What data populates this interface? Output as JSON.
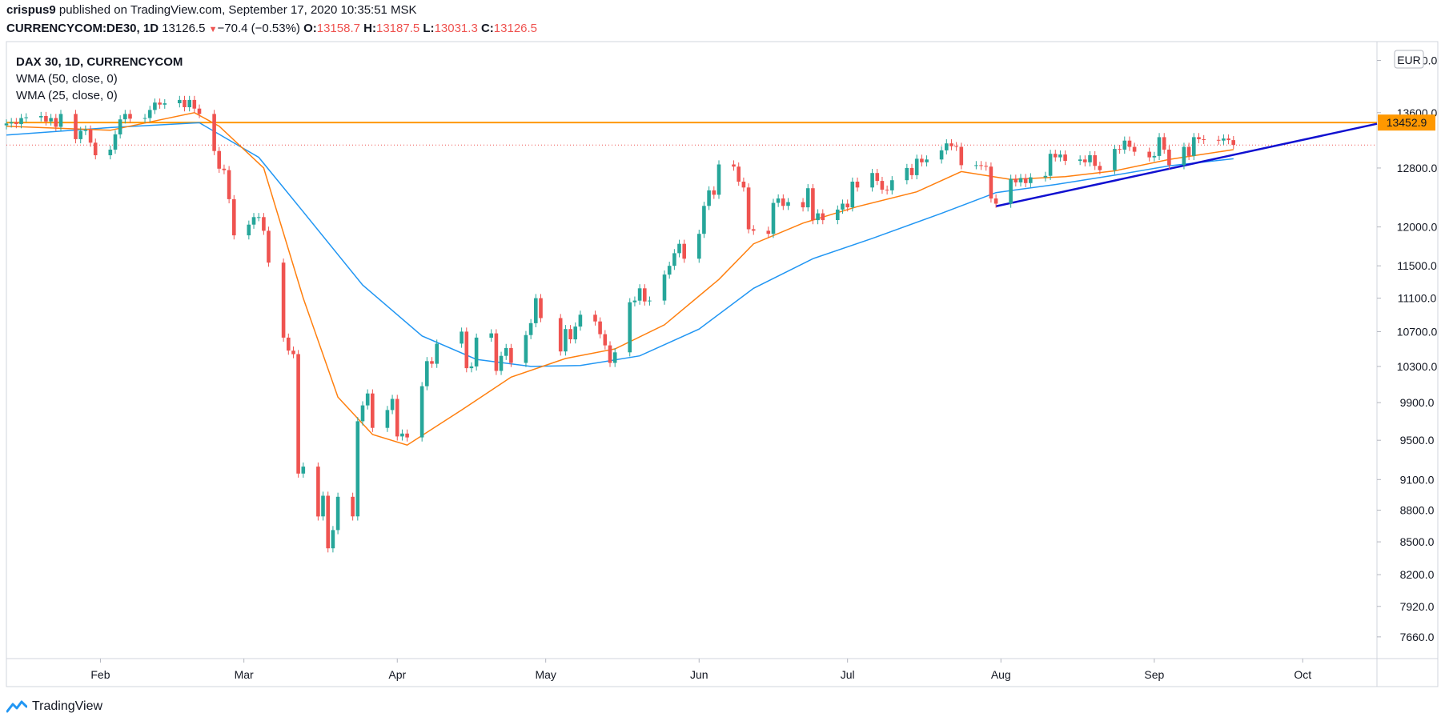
{
  "header": {
    "user": "crispus9",
    "published_text": "published on TradingView.com, September 17, 2020 10:35:51 MSK",
    "symbol": "CURRENCYCOM:DE30, 1D",
    "last": "13126.5",
    "change": "−70.4 (−0.53%)",
    "o_label": "O:",
    "o": "13158.7",
    "h_label": "H:",
    "h": "13187.5",
    "l_label": "L:",
    "l": "13031.3",
    "c_label": "C:",
    "c": "13126.5"
  },
  "legend": {
    "title": "DAX 30, 1D, CURRENCYCOM",
    "wma50": "WMA (50, close, 0)",
    "wma25": "WMA (25, close, 0)"
  },
  "footer": {
    "brand": "TradingView"
  },
  "colors": {
    "up": "#26a69a",
    "down": "#ef5350",
    "wma25": "#ff7f0e",
    "wma50": "#2196f3",
    "resistance": "#ff9800",
    "trendline": "#1010d0",
    "lastprice": "#ef5350"
  },
  "chart_data": {
    "type": "candlestick",
    "currency": "EUR",
    "y_scale": "log",
    "ylim": [
      7480,
      14700
    ],
    "ytick_labels": [
      "14400.0",
      "13600.0",
      "12800.0",
      "12000.0",
      "11500.0",
      "11100.0",
      "10700.0",
      "10300.0",
      "9900.0",
      "9500.0",
      "9100.0",
      "8800.0",
      "8500.0",
      "8200.0",
      "7920.0",
      "7660.0"
    ],
    "x_month_labels": [
      {
        "date": "2020-02-01",
        "label": "Feb"
      },
      {
        "date": "2020-03-01",
        "label": "Mar"
      },
      {
        "date": "2020-04-01",
        "label": "Apr"
      },
      {
        "date": "2020-05-01",
        "label": "May"
      },
      {
        "date": "2020-06-01",
        "label": "Jun"
      },
      {
        "date": "2020-07-01",
        "label": "Jul"
      },
      {
        "date": "2020-08-01",
        "label": "Aug"
      },
      {
        "date": "2020-09-01",
        "label": "Sep"
      },
      {
        "date": "2020-10-01",
        "label": "Oct"
      }
    ],
    "x_range": [
      "2020-01-13",
      "2020-10-16"
    ],
    "series_close": {
      "name": "DAX 30",
      "points": [
        [
          "2020-01-13",
          13440
        ],
        [
          "2020-01-14",
          13460
        ],
        [
          "2020-01-15",
          13430
        ],
        [
          "2020-01-16",
          13520
        ],
        [
          "2020-01-17",
          13530
        ],
        [
          "2020-01-20",
          13550
        ],
        [
          "2020-01-21",
          13470
        ],
        [
          "2020-01-22",
          13520
        ],
        [
          "2020-01-23",
          13390
        ],
        [
          "2020-01-24",
          13580
        ],
        [
          "2020-01-27",
          13210
        ],
        [
          "2020-01-28",
          13330
        ],
        [
          "2020-01-29",
          13350
        ],
        [
          "2020-01-30",
          13160
        ],
        [
          "2020-01-31",
          12980
        ],
        [
          "2020-02-03",
          13060
        ],
        [
          "2020-02-04",
          13280
        ],
        [
          "2020-02-05",
          13500
        ],
        [
          "2020-02-06",
          13580
        ],
        [
          "2020-02-07",
          13510
        ],
        [
          "2020-02-10",
          13520
        ],
        [
          "2020-02-11",
          13640
        ],
        [
          "2020-02-12",
          13750
        ],
        [
          "2020-02-13",
          13720
        ],
        [
          "2020-02-14",
          13740
        ],
        [
          "2020-02-17",
          13790
        ],
        [
          "2020-02-18",
          13680
        ],
        [
          "2020-02-19",
          13790
        ],
        [
          "2020-02-20",
          13660
        ],
        [
          "2020-02-21",
          13580
        ],
        [
          "2020-02-24",
          13040
        ],
        [
          "2020-02-25",
          12790
        ],
        [
          "2020-02-26",
          12770
        ],
        [
          "2020-02-27",
          12370
        ],
        [
          "2020-02-28",
          11890
        ],
        [
          "2020-03-02",
          12030
        ],
        [
          "2020-03-03",
          12130
        ],
        [
          "2020-03-04",
          12130
        ],
        [
          "2020-03-05",
          11950
        ],
        [
          "2020-03-06",
          11540
        ],
        [
          "2020-03-09",
          10630
        ],
        [
          "2020-03-10",
          10480
        ],
        [
          "2020-03-11",
          10440
        ],
        [
          "2020-03-12",
          9160
        ],
        [
          "2020-03-13",
          9230
        ],
        [
          "2020-03-16",
          8740
        ],
        [
          "2020-03-17",
          8940
        ],
        [
          "2020-03-18",
          8440
        ],
        [
          "2020-03-19",
          8610
        ],
        [
          "2020-03-20",
          8930
        ],
        [
          "2020-03-23",
          8740
        ],
        [
          "2020-03-24",
          9700
        ],
        [
          "2020-03-25",
          9870
        ],
        [
          "2020-03-26",
          10000
        ],
        [
          "2020-03-27",
          9630
        ],
        [
          "2020-03-30",
          9820
        ],
        [
          "2020-03-31",
          9940
        ],
        [
          "2020-04-01",
          9540
        ],
        [
          "2020-04-02",
          9570
        ],
        [
          "2020-04-03",
          9530
        ],
        [
          "2020-04-06",
          10080
        ],
        [
          "2020-04-07",
          10360
        ],
        [
          "2020-04-08",
          10330
        ],
        [
          "2020-04-09",
          10560
        ],
        [
          "2020-04-14",
          10700
        ],
        [
          "2020-04-15",
          10280
        ],
        [
          "2020-04-16",
          10300
        ],
        [
          "2020-04-17",
          10630
        ],
        [
          "2020-04-20",
          10680
        ],
        [
          "2020-04-21",
          10250
        ],
        [
          "2020-04-22",
          10420
        ],
        [
          "2020-04-23",
          10510
        ],
        [
          "2020-04-24",
          10340
        ],
        [
          "2020-04-27",
          10660
        ],
        [
          "2020-04-28",
          10800
        ],
        [
          "2020-04-29",
          11100
        ],
        [
          "2020-04-30",
          10860
        ],
        [
          "2020-05-04",
          10470
        ],
        [
          "2020-05-05",
          10730
        ],
        [
          "2020-05-06",
          10610
        ],
        [
          "2020-05-07",
          10760
        ],
        [
          "2020-05-08",
          10900
        ],
        [
          "2020-05-11",
          10820
        ],
        [
          "2020-05-12",
          10670
        ],
        [
          "2020-05-13",
          10540
        ],
        [
          "2020-05-14",
          10340
        ],
        [
          "2020-05-15",
          10460
        ],
        [
          "2020-05-18",
          11050
        ],
        [
          "2020-05-19",
          11070
        ],
        [
          "2020-05-20",
          11220
        ],
        [
          "2020-05-21",
          11060
        ],
        [
          "2020-05-22",
          11070
        ],
        [
          "2020-05-25",
          11390
        ],
        [
          "2020-05-26",
          11500
        ],
        [
          "2020-05-27",
          11660
        ],
        [
          "2020-05-28",
          11780
        ],
        [
          "2020-05-29",
          11590
        ],
        [
          "2020-06-01",
          11910
        ],
        [
          "2020-06-02",
          12280
        ],
        [
          "2020-06-03",
          12490
        ],
        [
          "2020-06-04",
          12430
        ],
        [
          "2020-06-05",
          12850
        ],
        [
          "2020-06-08",
          12820
        ],
        [
          "2020-06-09",
          12610
        ],
        [
          "2020-06-10",
          12530
        ],
        [
          "2020-06-11",
          11970
        ],
        [
          "2020-06-12",
          11950
        ],
        [
          "2020-06-15",
          11910
        ],
        [
          "2020-06-16",
          12320
        ],
        [
          "2020-06-17",
          12380
        ],
        [
          "2020-06-18",
          12280
        ],
        [
          "2020-06-19",
          12330
        ],
        [
          "2020-06-22",
          12260
        ],
        [
          "2020-06-23",
          12520
        ],
        [
          "2020-06-24",
          12090
        ],
        [
          "2020-06-25",
          12180
        ],
        [
          "2020-06-26",
          12090
        ],
        [
          "2020-06-29",
          12230
        ],
        [
          "2020-06-30",
          12310
        ],
        [
          "2020-07-01",
          12260
        ],
        [
          "2020-07-02",
          12610
        ],
        [
          "2020-07-03",
          12530
        ],
        [
          "2020-07-06",
          12730
        ],
        [
          "2020-07-07",
          12620
        ],
        [
          "2020-07-08",
          12500
        ],
        [
          "2020-07-09",
          12490
        ],
        [
          "2020-07-10",
          12630
        ],
        [
          "2020-07-13",
          12800
        ],
        [
          "2020-07-14",
          12700
        ],
        [
          "2020-07-15",
          12930
        ],
        [
          "2020-07-16",
          12880
        ],
        [
          "2020-07-17",
          12920
        ],
        [
          "2020-07-20",
          13050
        ],
        [
          "2020-07-21",
          13150
        ],
        [
          "2020-07-22",
          13110
        ],
        [
          "2020-07-23",
          13100
        ],
        [
          "2020-07-24",
          12840
        ],
        [
          "2020-07-27",
          12840
        ],
        [
          "2020-07-28",
          12830
        ],
        [
          "2020-07-29",
          12820
        ],
        [
          "2020-07-30",
          12380
        ],
        [
          "2020-07-31",
          12310
        ],
        [
          "2020-08-03",
          12650
        ],
        [
          "2020-08-04",
          12600
        ],
        [
          "2020-08-05",
          12660
        ],
        [
          "2020-08-06",
          12590
        ],
        [
          "2020-08-07",
          12670
        ],
        [
          "2020-08-10",
          12690
        ],
        [
          "2020-08-11",
          13000
        ],
        [
          "2020-08-12",
          12950
        ],
        [
          "2020-08-13",
          12990
        ],
        [
          "2020-08-14",
          12900
        ],
        [
          "2020-08-17",
          12920
        ],
        [
          "2020-08-18",
          12880
        ],
        [
          "2020-08-19",
          12980
        ],
        [
          "2020-08-20",
          12830
        ],
        [
          "2020-08-21",
          12770
        ],
        [
          "2020-08-24",
          13070
        ],
        [
          "2020-08-25",
          13060
        ],
        [
          "2020-08-26",
          13190
        ],
        [
          "2020-08-27",
          13100
        ],
        [
          "2020-08-28",
          13030
        ],
        [
          "2020-08-31",
          12950
        ],
        [
          "2020-09-01",
          12970
        ],
        [
          "2020-09-02",
          13240
        ],
        [
          "2020-09-03",
          13060
        ],
        [
          "2020-09-04",
          12840
        ],
        [
          "2020-09-07",
          13100
        ],
        [
          "2020-09-08",
          12970
        ],
        [
          "2020-09-09",
          13240
        ],
        [
          "2020-09-10",
          13210
        ],
        [
          "2020-09-11",
          13200
        ],
        [
          "2020-09-14",
          13190
        ],
        [
          "2020-09-15",
          13220
        ],
        [
          "2020-09-16",
          13197
        ],
        [
          "2020-09-17",
          13126.5
        ]
      ]
    },
    "wma25_points": [
      [
        "2020-01-13",
        13400
      ],
      [
        "2020-02-03",
        13340
      ],
      [
        "2020-02-20",
        13600
      ],
      [
        "2020-02-25",
        13400
      ],
      [
        "2020-03-05",
        12800
      ],
      [
        "2020-03-13",
        11100
      ],
      [
        "2020-03-20",
        9960
      ],
      [
        "2020-03-27",
        9560
      ],
      [
        "2020-04-03",
        9450
      ],
      [
        "2020-04-14",
        9820
      ],
      [
        "2020-04-24",
        10180
      ],
      [
        "2020-05-05",
        10390
      ],
      [
        "2020-05-15",
        10500
      ],
      [
        "2020-05-25",
        10780
      ],
      [
        "2020-06-05",
        11330
      ],
      [
        "2020-06-12",
        11780
      ],
      [
        "2020-06-22",
        12050
      ],
      [
        "2020-07-03",
        12270
      ],
      [
        "2020-07-15",
        12470
      ],
      [
        "2020-07-24",
        12750
      ],
      [
        "2020-08-03",
        12640
      ],
      [
        "2020-08-14",
        12680
      ],
      [
        "2020-08-24",
        12760
      ],
      [
        "2020-09-04",
        12920
      ],
      [
        "2020-09-17",
        13060
      ]
    ],
    "wma50_points": [
      [
        "2020-01-13",
        13270
      ],
      [
        "2020-02-03",
        13380
      ],
      [
        "2020-02-21",
        13450
      ],
      [
        "2020-03-04",
        12950
      ],
      [
        "2020-03-13",
        12200
      ],
      [
        "2020-03-25",
        11260
      ],
      [
        "2020-04-06",
        10650
      ],
      [
        "2020-04-17",
        10380
      ],
      [
        "2020-04-28",
        10300
      ],
      [
        "2020-05-08",
        10310
      ],
      [
        "2020-05-20",
        10420
      ],
      [
        "2020-06-01",
        10730
      ],
      [
        "2020-06-12",
        11220
      ],
      [
        "2020-06-24",
        11590
      ],
      [
        "2020-07-06",
        11850
      ],
      [
        "2020-07-20",
        12180
      ],
      [
        "2020-07-31",
        12460
      ],
      [
        "2020-08-12",
        12570
      ],
      [
        "2020-08-24",
        12700
      ],
      [
        "2020-09-04",
        12830
      ],
      [
        "2020-09-17",
        12930
      ]
    ],
    "horizontal_line": {
      "price": 13452.9,
      "label": "13452.9"
    },
    "trendline": {
      "from": [
        "2020-07-31",
        12275
      ],
      "to": [
        "2020-10-16",
        13435
      ]
    },
    "last_price_line": 13126.5
  }
}
